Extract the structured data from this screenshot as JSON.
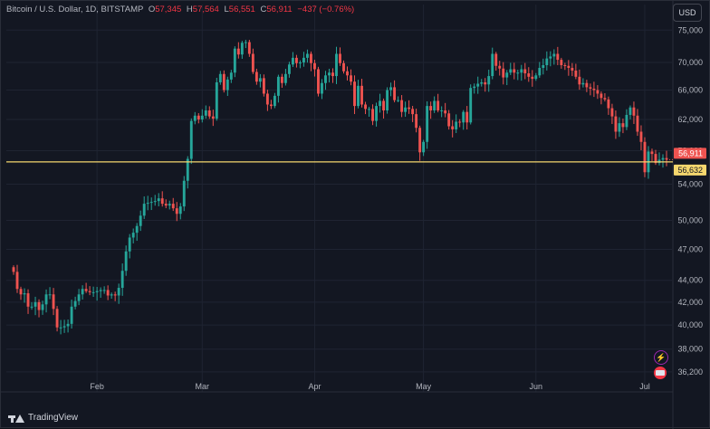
{
  "legend": {
    "symbol": "Bitcoin / U.S. Dollar, 1D, BITSTAMP",
    "o_label": "O",
    "o_value": "57,345",
    "h_label": "H",
    "h_value": "57,564",
    "l_label": "L",
    "l_value": "56,551",
    "c_label": "C",
    "c_value": "56,911",
    "change": "−437 (−0.76%)"
  },
  "currency_button": "USD",
  "brand": "TradingView",
  "icons": [
    "flash-icon",
    "flag-icon"
  ],
  "colors": {
    "up": "#26a69a",
    "down": "#ef5350",
    "hline": "#f5d76e",
    "last_price_bg": "#ef5350",
    "line_price_bg": "#f5d76e"
  },
  "chart_data": {
    "type": "candlestick",
    "symbol": "Bitcoin / U.S. Dollar",
    "interval": "1D",
    "exchange": "BITSTAMP",
    "y_ticks": [
      "75,000",
      "70,000",
      "66,000",
      "62,000",
      "58,000",
      "54,000",
      "50,000",
      "47,000",
      "44,000",
      "42,000",
      "40,000",
      "38,000",
      "36,200"
    ],
    "y_tick_values": [
      75000,
      70000,
      66000,
      62000,
      58000,
      54000,
      50000,
      47000,
      44000,
      42000,
      40000,
      38000,
      36200
    ],
    "ylim": [
      35500,
      76500
    ],
    "y_scale": "log",
    "x_ticks": [
      {
        "label": "Feb",
        "index": 23
      },
      {
        "label": "Mar",
        "index": 52
      },
      {
        "label": "Apr",
        "index": 83
      },
      {
        "label": "May",
        "index": 113
      },
      {
        "label": "Jun",
        "index": 144
      },
      {
        "label": "Jul",
        "index": 174
      }
    ],
    "last_price": {
      "value": 56911,
      "label": "56,911"
    },
    "horizontal_line": {
      "value": 56632,
      "label": "56,632"
    },
    "close_series": [
      44800,
      43200,
      42700,
      42800,
      41600,
      41600,
      42000,
      41300,
      41800,
      42700,
      42700,
      41400,
      39800,
      39800,
      39900,
      40100,
      41600,
      42100,
      42700,
      43200,
      43000,
      42900,
      42900,
      43000,
      43100,
      43100,
      42600,
      42700,
      42600,
      43300,
      44900,
      46800,
      48200,
      48700,
      49400,
      50500,
      51800,
      51900,
      52000,
      52100,
      52400,
      51800,
      51600,
      51800,
      51300,
      50700,
      51500,
      54400,
      57000,
      61800,
      62500,
      62000,
      62500,
      63200,
      62400,
      62100,
      67100,
      68300,
      66000,
      67500,
      68500,
      72100,
      71200,
      73000,
      73100,
      71300,
      68600,
      67200,
      67700,
      65500,
      64000,
      63800,
      65200,
      67900,
      67000,
      68300,
      69700,
      70700,
      69900,
      70000,
      70700,
      71300,
      69900,
      69000,
      65500,
      67000,
      68100,
      68500,
      68000,
      71300,
      69900,
      68700,
      68100,
      67200,
      63800,
      66600,
      64000,
      63400,
      63400,
      61800,
      63800,
      64500,
      63200,
      66000,
      66400,
      64600,
      64600,
      63000,
      63600,
      63400,
      62700,
      60900,
      57800,
      59100,
      63800,
      63200,
      64500,
      63200,
      63200,
      62800,
      61100,
      60700,
      61700,
      61600,
      63000,
      61600,
      66300,
      66500,
      66900,
      67100,
      66800,
      68000,
      71300,
      69500,
      69100,
      67800,
      68500,
      69000,
      68500,
      68500,
      69000,
      68400,
      67900,
      67600,
      68100,
      69200,
      69600,
      70600,
      70900,
      71300,
      70400,
      69600,
      69500,
      69200,
      68800,
      67900,
      66800,
      67000,
      66400,
      66200,
      66000,
      65500,
      64900,
      64700,
      63500,
      62400,
      60400,
      61500,
      61000,
      62600,
      63600,
      62500,
      60400,
      59100,
      55400,
      57900,
      57600,
      56500,
      56900,
      57100,
      56911
    ]
  }
}
